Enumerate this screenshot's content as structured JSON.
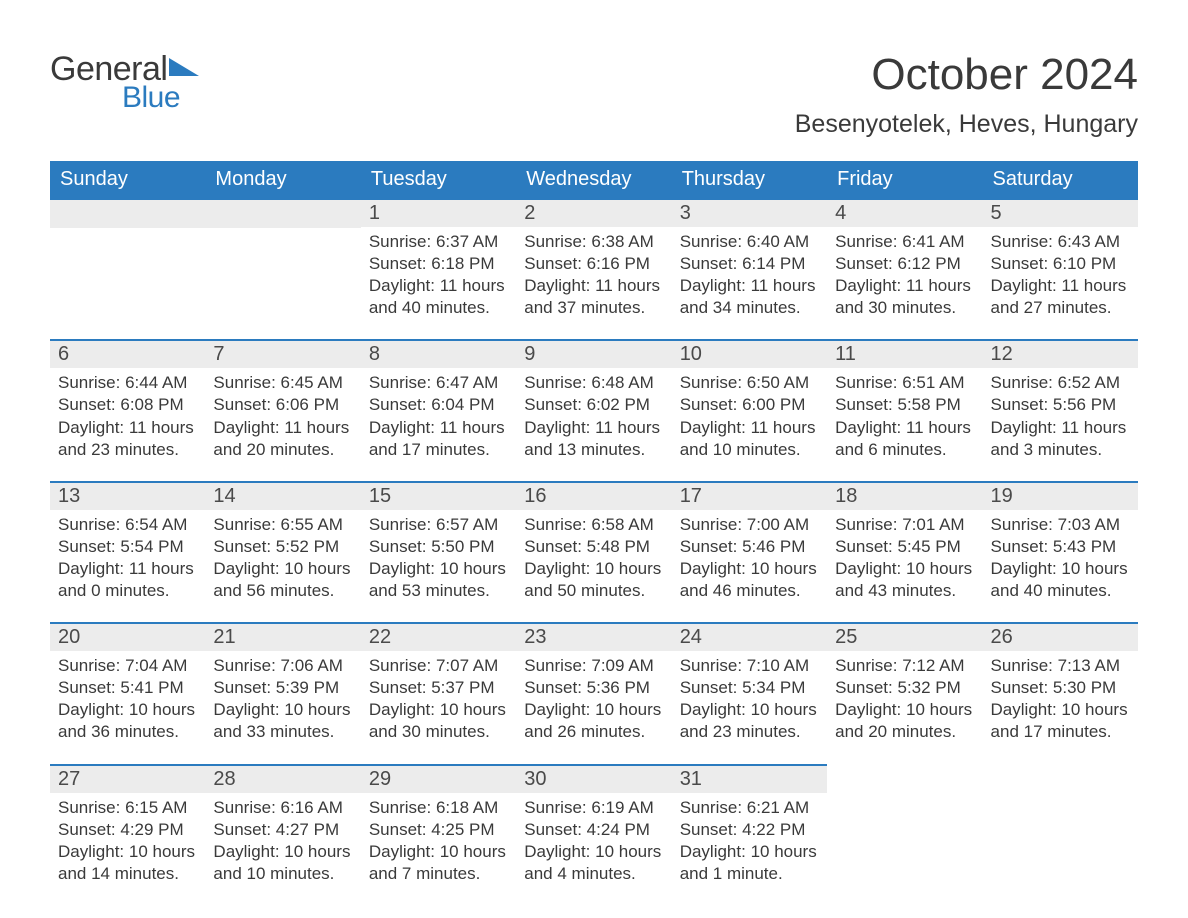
{
  "logo": {
    "text1": "General",
    "text2": "Blue",
    "tri_color": "#2b7bbf"
  },
  "header": {
    "month": "October 2024",
    "location": "Besenyotelek, Heves, Hungary"
  },
  "colors": {
    "header_bg": "#2b7bbf",
    "header_fg": "#ffffff",
    "daynum_bg": "#ececec",
    "daynum_border": "#2b7bbf",
    "text": "#3a3a3a",
    "page_bg": "#ffffff"
  },
  "fonts": {
    "title_size": 44,
    "loc_size": 25,
    "th_size": 20,
    "daynum_size": 20,
    "body_size": 17
  },
  "weekday_headers": [
    "Sunday",
    "Monday",
    "Tuesday",
    "Wednesday",
    "Thursday",
    "Friday",
    "Saturday"
  ],
  "weeks": [
    [
      null,
      null,
      {
        "n": "1",
        "sunrise": "6:37 AM",
        "sunset": "6:18 PM",
        "daylight": "11 hours and 40 minutes."
      },
      {
        "n": "2",
        "sunrise": "6:38 AM",
        "sunset": "6:16 PM",
        "daylight": "11 hours and 37 minutes."
      },
      {
        "n": "3",
        "sunrise": "6:40 AM",
        "sunset": "6:14 PM",
        "daylight": "11 hours and 34 minutes."
      },
      {
        "n": "4",
        "sunrise": "6:41 AM",
        "sunset": "6:12 PM",
        "daylight": "11 hours and 30 minutes."
      },
      {
        "n": "5",
        "sunrise": "6:43 AM",
        "sunset": "6:10 PM",
        "daylight": "11 hours and 27 minutes."
      }
    ],
    [
      {
        "n": "6",
        "sunrise": "6:44 AM",
        "sunset": "6:08 PM",
        "daylight": "11 hours and 23 minutes."
      },
      {
        "n": "7",
        "sunrise": "6:45 AM",
        "sunset": "6:06 PM",
        "daylight": "11 hours and 20 minutes."
      },
      {
        "n": "8",
        "sunrise": "6:47 AM",
        "sunset": "6:04 PM",
        "daylight": "11 hours and 17 minutes."
      },
      {
        "n": "9",
        "sunrise": "6:48 AM",
        "sunset": "6:02 PM",
        "daylight": "11 hours and 13 minutes."
      },
      {
        "n": "10",
        "sunrise": "6:50 AM",
        "sunset": "6:00 PM",
        "daylight": "11 hours and 10 minutes."
      },
      {
        "n": "11",
        "sunrise": "6:51 AM",
        "sunset": "5:58 PM",
        "daylight": "11 hours and 6 minutes."
      },
      {
        "n": "12",
        "sunrise": "6:52 AM",
        "sunset": "5:56 PM",
        "daylight": "11 hours and 3 minutes."
      }
    ],
    [
      {
        "n": "13",
        "sunrise": "6:54 AM",
        "sunset": "5:54 PM",
        "daylight": "11 hours and 0 minutes."
      },
      {
        "n": "14",
        "sunrise": "6:55 AM",
        "sunset": "5:52 PM",
        "daylight": "10 hours and 56 minutes."
      },
      {
        "n": "15",
        "sunrise": "6:57 AM",
        "sunset": "5:50 PM",
        "daylight": "10 hours and 53 minutes."
      },
      {
        "n": "16",
        "sunrise": "6:58 AM",
        "sunset": "5:48 PM",
        "daylight": "10 hours and 50 minutes."
      },
      {
        "n": "17",
        "sunrise": "7:00 AM",
        "sunset": "5:46 PM",
        "daylight": "10 hours and 46 minutes."
      },
      {
        "n": "18",
        "sunrise": "7:01 AM",
        "sunset": "5:45 PM",
        "daylight": "10 hours and 43 minutes."
      },
      {
        "n": "19",
        "sunrise": "7:03 AM",
        "sunset": "5:43 PM",
        "daylight": "10 hours and 40 minutes."
      }
    ],
    [
      {
        "n": "20",
        "sunrise": "7:04 AM",
        "sunset": "5:41 PM",
        "daylight": "10 hours and 36 minutes."
      },
      {
        "n": "21",
        "sunrise": "7:06 AM",
        "sunset": "5:39 PM",
        "daylight": "10 hours and 33 minutes."
      },
      {
        "n": "22",
        "sunrise": "7:07 AM",
        "sunset": "5:37 PM",
        "daylight": "10 hours and 30 minutes."
      },
      {
        "n": "23",
        "sunrise": "7:09 AM",
        "sunset": "5:36 PM",
        "daylight": "10 hours and 26 minutes."
      },
      {
        "n": "24",
        "sunrise": "7:10 AM",
        "sunset": "5:34 PM",
        "daylight": "10 hours and 23 minutes."
      },
      {
        "n": "25",
        "sunrise": "7:12 AM",
        "sunset": "5:32 PM",
        "daylight": "10 hours and 20 minutes."
      },
      {
        "n": "26",
        "sunrise": "7:13 AM",
        "sunset": "5:30 PM",
        "daylight": "10 hours and 17 minutes."
      }
    ],
    [
      {
        "n": "27",
        "sunrise": "6:15 AM",
        "sunset": "4:29 PM",
        "daylight": "10 hours and 14 minutes."
      },
      {
        "n": "28",
        "sunrise": "6:16 AM",
        "sunset": "4:27 PM",
        "daylight": "10 hours and 10 minutes."
      },
      {
        "n": "29",
        "sunrise": "6:18 AM",
        "sunset": "4:25 PM",
        "daylight": "10 hours and 7 minutes."
      },
      {
        "n": "30",
        "sunrise": "6:19 AM",
        "sunset": "4:24 PM",
        "daylight": "10 hours and 4 minutes."
      },
      {
        "n": "31",
        "sunrise": "6:21 AM",
        "sunset": "4:22 PM",
        "daylight": "10 hours and 1 minute."
      },
      null,
      null
    ]
  ],
  "labels": {
    "sunrise": "Sunrise: ",
    "sunset": "Sunset: ",
    "daylight": "Daylight: "
  }
}
